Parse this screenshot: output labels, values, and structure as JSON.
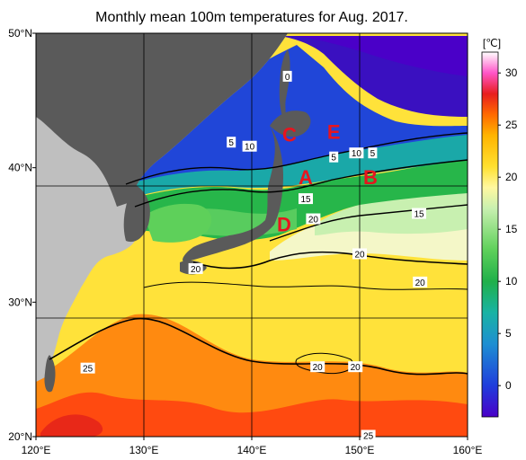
{
  "title": "Monthly mean 100m temperatures for Aug. 2017.",
  "axes": {
    "x_ticks": [
      {
        "value": 120,
        "label": "120°E"
      },
      {
        "value": 130,
        "label": "130°E"
      },
      {
        "value": 140,
        "label": "140°E"
      },
      {
        "value": 150,
        "label": "150°E"
      },
      {
        "value": 160,
        "label": "160°E"
      }
    ],
    "y_ticks": [
      {
        "value": 50,
        "label": "50°N"
      },
      {
        "value": 40,
        "label": "40°N"
      },
      {
        "value": 30,
        "label": "30°N"
      },
      {
        "value": 20,
        "label": "20°N"
      }
    ],
    "lon_range": [
      120,
      160
    ],
    "lat_range": [
      20,
      50
    ]
  },
  "colorbar": {
    "unit": "[℃]",
    "range": [
      -3,
      32
    ],
    "ticks": [
      0,
      5,
      10,
      15,
      20,
      25,
      30
    ],
    "stops": [
      {
        "t": -3,
        "color": "#4a00c8"
      },
      {
        "t": 0,
        "color": "#1f3ddc"
      },
      {
        "t": 4,
        "color": "#1e8fd2"
      },
      {
        "t": 7,
        "color": "#19b3a4"
      },
      {
        "t": 10,
        "color": "#20b04a"
      },
      {
        "t": 13,
        "color": "#5ed05a"
      },
      {
        "t": 17,
        "color": "#c8f0b0"
      },
      {
        "t": 19,
        "color": "#fff8a0"
      },
      {
        "t": 21,
        "color": "#ffe030"
      },
      {
        "t": 24,
        "color": "#ffb400"
      },
      {
        "t": 26,
        "color": "#ff6a00"
      },
      {
        "t": 28,
        "color": "#e81e1e"
      },
      {
        "t": 30,
        "color": "#ff55c8"
      },
      {
        "t": 32,
        "color": "#ffffff"
      }
    ]
  },
  "colors": {
    "land": "#bfbfbf",
    "land_dark": "#5a5a5a",
    "grid": "#000000"
  },
  "contour_labels": [
    {
      "text": "0",
      "lon": 143.3,
      "lat": 46.8
    },
    {
      "text": "5",
      "lon": 138.1,
      "lat": 41.9
    },
    {
      "text": "10",
      "lon": 139.8,
      "lat": 41.6
    },
    {
      "text": "5",
      "lon": 147.6,
      "lat": 40.8
    },
    {
      "text": "10",
      "lon": 149.7,
      "lat": 41.1
    },
    {
      "text": "5",
      "lon": 151.2,
      "lat": 41.1
    },
    {
      "text": "15",
      "lon": 145.0,
      "lat": 37.7
    },
    {
      "text": "20",
      "lon": 145.7,
      "lat": 36.2
    },
    {
      "text": "15",
      "lon": 155.5,
      "lat": 36.6
    },
    {
      "text": "20",
      "lon": 134.8,
      "lat": 32.5
    },
    {
      "text": "20",
      "lon": 150.0,
      "lat": 33.6
    },
    {
      "text": "20",
      "lon": 155.6,
      "lat": 31.5
    },
    {
      "text": "25",
      "lon": 124.8,
      "lat": 25.1
    },
    {
      "text": "20",
      "lon": 146.1,
      "lat": 25.2
    },
    {
      "text": "20",
      "lon": 149.6,
      "lat": 25.2
    },
    {
      "text": "25",
      "lon": 150.8,
      "lat": 20.1
    }
  ],
  "annotations": [
    {
      "text": "C",
      "lon": 143.5,
      "lat": 42.5
    },
    {
      "text": "E",
      "lon": 147.6,
      "lat": 42.7
    },
    {
      "text": "A",
      "lon": 145.0,
      "lat": 39.3
    },
    {
      "text": "B",
      "lon": 151.0,
      "lat": 39.3
    },
    {
      "text": "D",
      "lon": 143.0,
      "lat": 35.8
    }
  ]
}
